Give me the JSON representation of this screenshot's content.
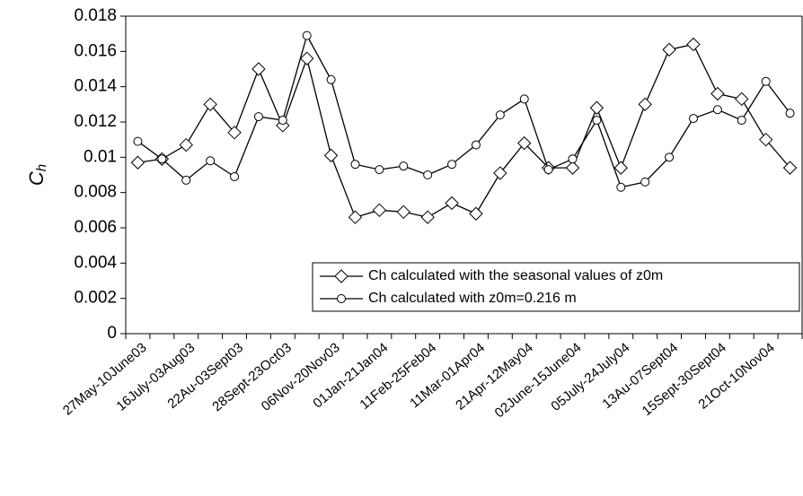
{
  "chart_data": {
    "type": "line",
    "ylabel": "C",
    "ylabel_subscript": "h",
    "categories": [
      "27May-10June03",
      null,
      "16July-03Aug03",
      null,
      "22Au-03Sept03",
      null,
      "28Sept-23Oct03",
      null,
      "06Nov-20Nov03",
      null,
      "01Jan-21Jan04",
      null,
      "11Feb-25Feb04",
      null,
      "11Mar-01Apr04",
      null,
      "21Apr-12May04",
      null,
      "02June-15June04",
      null,
      "05July-24July04",
      null,
      "13Au-07Sept04",
      null,
      "15Sept-30Sept04",
      null,
      "21Oct-10Nov04",
      null
    ],
    "series": [
      {
        "name": "Ch calculated with the seasonal values of z0m",
        "marker": "diamond",
        "color": "#000000",
        "values": [
          0.0097,
          0.0099,
          0.0107,
          0.013,
          0.0114,
          0.015,
          0.0118,
          0.0156,
          0.0101,
          0.0066,
          0.007,
          0.0069,
          0.0066,
          0.0074,
          0.0068,
          0.0091,
          0.0108,
          0.0094,
          0.0094,
          0.0128,
          0.0094,
          0.013,
          0.0161,
          0.0164,
          0.0136,
          0.0133,
          0.011,
          0.0094
        ]
      },
      {
        "name": "Ch calculated with z0m=0.216 m",
        "marker": "circle",
        "color": "#000000",
        "values": [
          0.0109,
          0.0099,
          0.0087,
          0.0098,
          0.0089,
          0.0123,
          0.0121,
          0.0169,
          0.0144,
          0.0096,
          0.0093,
          0.0095,
          0.009,
          0.0096,
          0.0107,
          0.0124,
          0.0133,
          0.0093,
          0.0099,
          0.0121,
          0.0083,
          0.0086,
          0.01,
          0.0122,
          0.0127,
          0.0121,
          0.0143,
          0.0125
        ]
      }
    ],
    "ylim": [
      0,
      0.018
    ],
    "yticks": [
      0,
      0.002,
      0.004,
      0.006,
      0.008,
      0.01,
      0.012,
      0.014,
      0.016,
      0.018
    ],
    "grid": false,
    "legend": "lower right"
  }
}
